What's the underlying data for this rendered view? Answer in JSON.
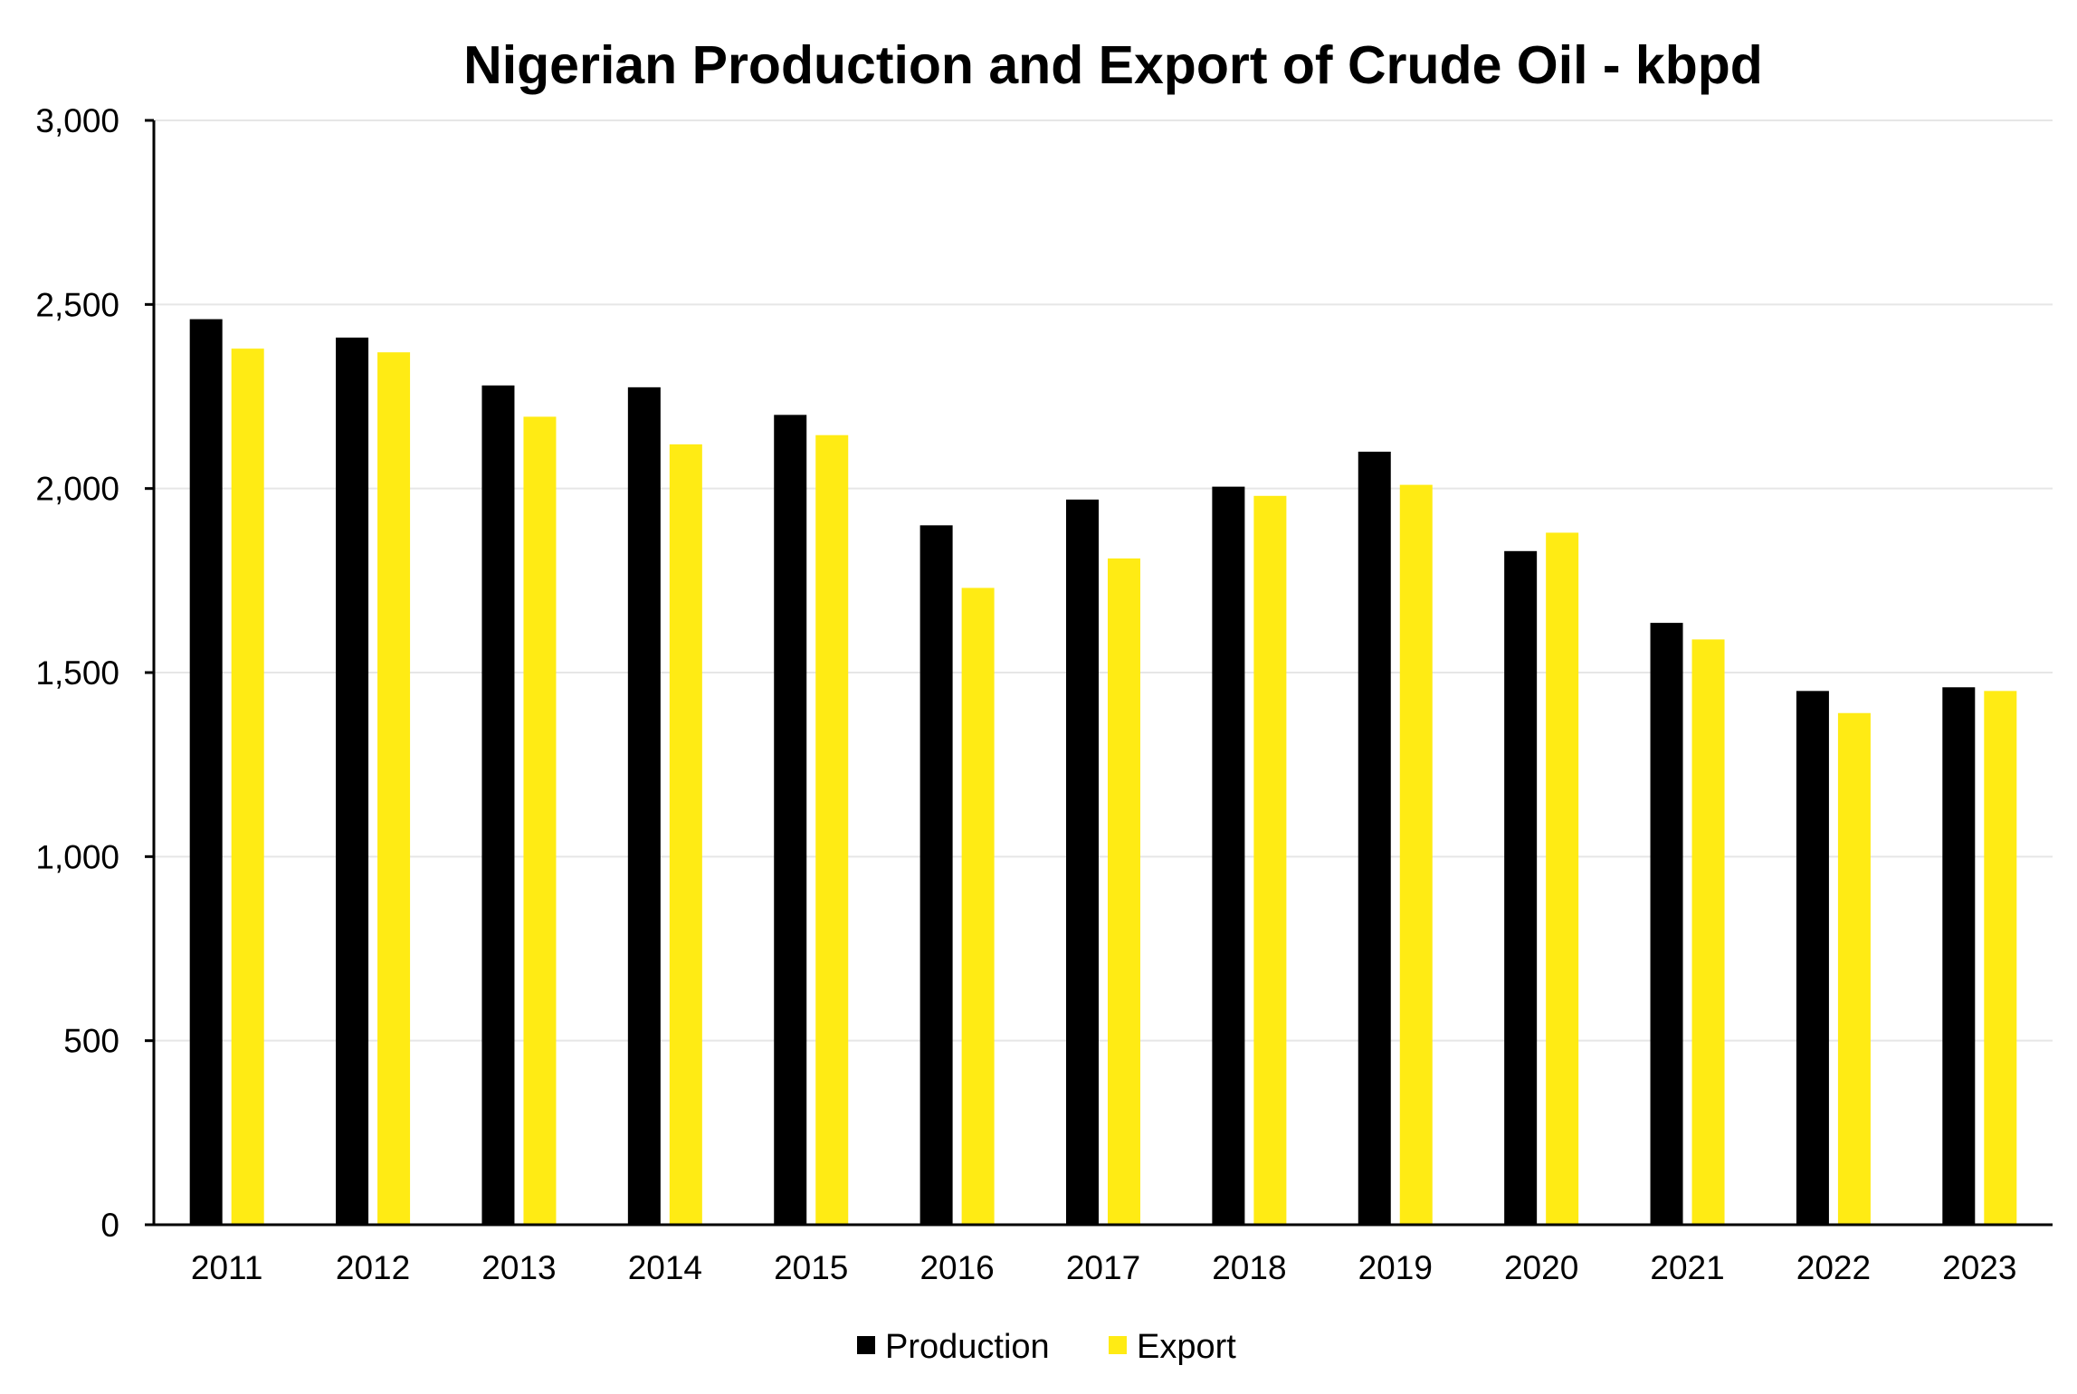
{
  "chart_data": {
    "type": "bar",
    "title": "Nigerian Production and Export of Crude Oil - kbpd",
    "xlabel": "",
    "ylabel": "",
    "categories": [
      "2011",
      "2012",
      "2013",
      "2014",
      "2015",
      "2016",
      "2017",
      "2018",
      "2019",
      "2020",
      "2021",
      "2022",
      "2023"
    ],
    "series": [
      {
        "name": "Production",
        "color": "#000000",
        "values": [
          2460,
          2410,
          2280,
          2275,
          2200,
          1900,
          1970,
          2005,
          2100,
          1830,
          1635,
          1450,
          1460
        ]
      },
      {
        "name": "Export",
        "color": "#FFEB14",
        "values": [
          2380,
          2370,
          2195,
          2120,
          2145,
          1730,
          1810,
          1980,
          2010,
          1880,
          1590,
          1390,
          1450
        ]
      }
    ],
    "ylim": [
      0,
      3000
    ],
    "yticks": [
      0,
      500,
      1000,
      1500,
      2000,
      2500,
      3000
    ],
    "ytick_labels": [
      "0",
      "500",
      "1,000",
      "1,500",
      "2,000",
      "2,500",
      "3,000"
    ],
    "grid": true,
    "legend_position": "bottom-center"
  }
}
